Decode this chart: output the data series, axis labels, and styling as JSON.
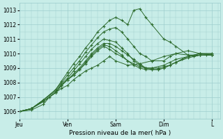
{
  "xlabel": "Pression niveau de la mer( hPa )",
  "bg_color": "#c8ede8",
  "plot_bg_color": "#c8ede8",
  "grid_color": "#9ecece",
  "line_color": "#2d6b2d",
  "marker_color": "#2d6b2d",
  "ylim": [
    1005.5,
    1013.5
  ],
  "yticks": [
    1006,
    1007,
    1008,
    1009,
    1010,
    1011,
    1012,
    1013
  ],
  "xtick_labels": [
    "Jeu",
    "Ven",
    "Sam",
    "Dim",
    "L"
  ],
  "xtick_pos": [
    0,
    24,
    48,
    72,
    96
  ],
  "xlim": [
    0,
    100
  ],
  "series": [
    {
      "x": [
        0,
        6,
        12,
        15,
        18,
        21,
        24,
        27,
        30,
        33,
        36,
        39,
        42,
        45,
        48,
        54,
        60,
        66,
        72,
        78,
        84,
        90,
        96
      ],
      "y": [
        1006.0,
        1006.1,
        1006.5,
        1007.0,
        1007.3,
        1007.6,
        1007.8,
        1008.2,
        1008.5,
        1008.8,
        1009.0,
        1009.2,
        1009.5,
        1009.8,
        1009.5,
        1009.2,
        1009.3,
        1009.5,
        1009.8,
        1010.0,
        1009.9,
        1009.9,
        1009.9
      ]
    },
    {
      "x": [
        0,
        6,
        12,
        18,
        21,
        24,
        27,
        30,
        33,
        36,
        39,
        42,
        45,
        48,
        51,
        54,
        57,
        60,
        63,
        66,
        69,
        72,
        75,
        78,
        81,
        84,
        90,
        96
      ],
      "y": [
        1006.0,
        1006.2,
        1006.7,
        1007.3,
        1007.8,
        1008.2,
        1008.5,
        1008.9,
        1009.3,
        1009.8,
        1010.2,
        1010.5,
        1010.3,
        1010.0,
        1009.8,
        1009.5,
        1009.3,
        1009.1,
        1009.0,
        1009.0,
        1009.0,
        1009.1,
        1009.2,
        1009.4,
        1009.6,
        1009.8,
        1009.9,
        1009.9
      ]
    },
    {
      "x": [
        0,
        6,
        12,
        18,
        21,
        24,
        27,
        30,
        33,
        36,
        39,
        42,
        45,
        48,
        51,
        54,
        57,
        60,
        63,
        66,
        69,
        72,
        75,
        78,
        84,
        90,
        96
      ],
      "y": [
        1006.0,
        1006.2,
        1006.7,
        1007.3,
        1007.8,
        1008.2,
        1008.5,
        1008.9,
        1009.4,
        1009.9,
        1010.3,
        1010.6,
        1010.5,
        1010.2,
        1009.9,
        1009.5,
        1009.2,
        1009.0,
        1008.9,
        1008.9,
        1008.9,
        1009.0,
        1009.2,
        1009.4,
        1009.7,
        1009.9,
        1009.9
      ]
    },
    {
      "x": [
        0,
        6,
        12,
        18,
        21,
        24,
        27,
        30,
        33,
        36,
        39,
        42,
        45,
        48,
        51,
        54,
        57,
        60,
        63,
        66,
        69,
        72,
        78,
        84,
        90,
        96
      ],
      "y": [
        1006.0,
        1006.2,
        1006.7,
        1007.3,
        1007.8,
        1008.2,
        1008.6,
        1009.0,
        1009.5,
        1010.0,
        1010.4,
        1010.7,
        1010.7,
        1010.5,
        1010.2,
        1009.9,
        1009.6,
        1009.3,
        1009.0,
        1008.9,
        1008.9,
        1009.0,
        1009.4,
        1009.8,
        1010.0,
        1010.0
      ]
    },
    {
      "x": [
        0,
        6,
        12,
        18,
        21,
        24,
        27,
        30,
        33,
        36,
        39,
        42,
        45,
        48,
        51,
        54,
        57,
        60,
        63,
        66,
        72,
        75,
        78,
        84,
        90,
        96
      ],
      "y": [
        1006.0,
        1006.2,
        1006.8,
        1007.4,
        1007.9,
        1008.3,
        1008.8,
        1009.3,
        1009.8,
        1010.3,
        1010.7,
        1011.0,
        1010.9,
        1010.8,
        1010.4,
        1010.0,
        1009.5,
        1009.2,
        1009.0,
        1009.0,
        1009.2,
        1009.4,
        1009.6,
        1009.8,
        1010.0,
        1010.0
      ]
    },
    {
      "x": [
        0,
        6,
        12,
        18,
        21,
        24,
        27,
        30,
        33,
        36,
        39,
        42,
        45,
        48,
        51,
        54,
        57,
        60,
        63,
        66,
        72,
        75,
        78,
        84,
        90,
        96
      ],
      "y": [
        1006.0,
        1006.2,
        1006.8,
        1007.5,
        1008.0,
        1008.5,
        1009.0,
        1009.5,
        1010.1,
        1010.6,
        1011.1,
        1011.5,
        1011.7,
        1011.8,
        1011.5,
        1011.0,
        1010.5,
        1010.0,
        1009.8,
        1009.5,
        1009.5,
        1009.8,
        1010.0,
        1010.2,
        1010.0,
        1009.9
      ]
    },
    {
      "x": [
        0,
        6,
        12,
        18,
        21,
        24,
        27,
        30,
        33,
        36,
        39,
        42,
        45,
        48,
        51,
        54,
        57,
        60,
        63,
        66,
        72,
        75,
        78,
        84,
        87,
        90,
        93,
        96
      ],
      "y": [
        1006.0,
        1006.2,
        1006.8,
        1007.5,
        1008.1,
        1008.7,
        1009.3,
        1009.8,
        1010.4,
        1010.9,
        1011.5,
        1011.9,
        1012.3,
        1012.5,
        1012.3,
        1012.0,
        1013.0,
        1013.1,
        1012.5,
        1012.0,
        1011.0,
        1010.8,
        1010.5,
        1009.9,
        1009.8,
        1009.9,
        1009.9,
        1009.9
      ]
    }
  ]
}
